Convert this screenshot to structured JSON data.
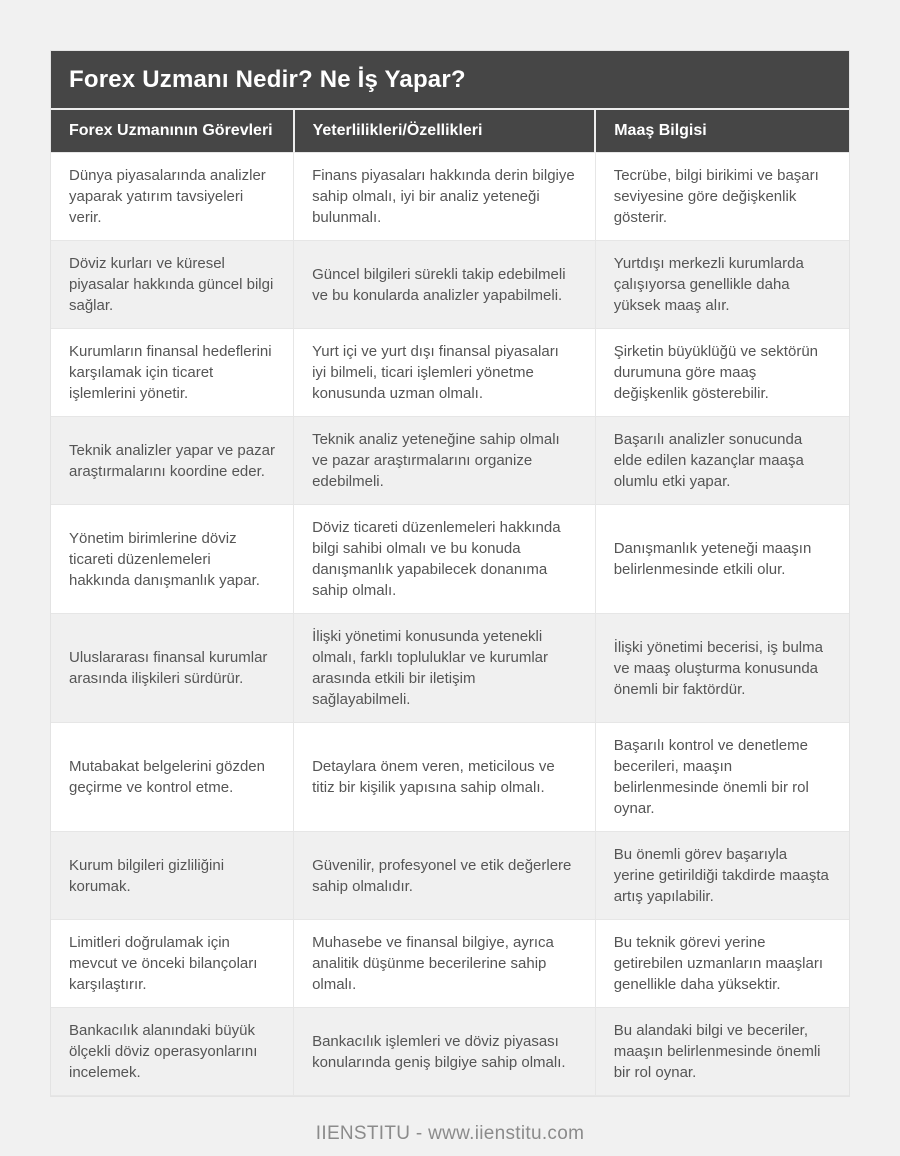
{
  "header": {
    "title": "Forex Uzmanı Nedir? Ne İş Yapar?"
  },
  "table": {
    "columns": [
      "Forex Uzmanının Görevleri",
      "Yeterlilikleri/Özellikleri",
      "Maaş Bilgisi"
    ],
    "rows": [
      [
        "Dünya piyasalarında analizler yaparak yatırım tavsiyeleri verir.",
        "Finans piyasaları hakkında derin bilgiye sahip olmalı, iyi bir analiz yeteneği bulunmalı.",
        "Tecrübe, bilgi birikimi ve başarı seviyesine göre değişkenlik gösterir."
      ],
      [
        "Döviz kurları ve küresel piyasalar hakkında güncel bilgi sağlar.",
        "Güncel bilgileri sürekli takip edebilmeli ve bu konularda analizler yapabilmeli.",
        "Yurtdışı merkezli kurumlarda çalışıyorsa genellikle daha yüksek maaş alır."
      ],
      [
        "Kurumların finansal hedeflerini karşılamak için ticaret işlemlerini yönetir.",
        "Yurt içi ve yurt dışı finansal piyasaları iyi bilmeli, ticari işlemleri yönetme konusunda uzman olmalı.",
        "Şirketin büyüklüğü ve sektörün durumuna göre maaş değişkenlik gösterebilir."
      ],
      [
        "Teknik analizler yapar ve pazar araştırmalarını koordine eder.",
        "Teknik analiz yeteneğine sahip olmalı ve pazar araştırmalarını organize edebilmeli.",
        "Başarılı analizler sonucunda elde edilen kazançlar maaşa olumlu etki yapar."
      ],
      [
        "Yönetim birimlerine döviz ticareti düzenlemeleri hakkında danışmanlık yapar.",
        "Döviz ticareti düzenlemeleri hakkında bilgi sahibi olmalı ve bu konuda danışmanlık yapabilecek donanıma sahip olmalı.",
        "Danışmanlık yeteneği maaşın belirlenmesinde etkili olur."
      ],
      [
        "Uluslararası finansal kurumlar arasında ilişkileri sürdürür.",
        "İlişki yönetimi konusunda yetenekli olmalı, farklı topluluklar ve kurumlar arasında etkili bir iletişim sağlayabilmeli.",
        "İlişki yönetimi becerisi, iş bulma ve maaş oluşturma konusunda önemli bir faktördür."
      ],
      [
        "Mutabakat belgelerini gözden geçirme ve kontrol etme.",
        "Detaylara önem veren, meticilous ve titiz bir kişilik yapısına sahip olmalı.",
        "Başarılı kontrol ve denetleme becerileri, maaşın belirlenmesinde önemli bir rol oynar."
      ],
      [
        "Kurum bilgileri gizliliğini korumak.",
        "Güvenilir, profesyonel ve etik değerlere sahip olmalıdır.",
        "Bu önemli görev başarıyla yerine getirildiği takdirde maaşta artış yapılabilir."
      ],
      [
        "Limitleri doğrulamak için mevcut ve önceki bilançoları karşılaştırır.",
        "Muhasebe ve finansal bilgiye, ayrıca analitik düşünme becerilerine sahip olmalı.",
        "Bu teknik görevi yerine getirebilen uzmanların maaşları genellikle daha yüksektir."
      ],
      [
        "Bankacılık alanındaki büyük ölçekli döviz operasyonlarını incelemek.",
        "Bankacılık işlemleri ve döviz piyasası konularında geniş bilgiye sahip olmalı.",
        "Bu alandaki bilgi ve beceriler, maaşın belirlenmesinde önemli bir rol oynar."
      ]
    ]
  },
  "footer": {
    "text": "IIENSTITU - www.iienstitu.com"
  },
  "colors": {
    "header_bg": "#464646",
    "header_text": "#ffffff",
    "page_bg": "#f1f1f1",
    "row_alt_bg": "#f0f0f0",
    "body_text": "#555555",
    "border": "#e6e6e6",
    "footer_text": "#8b8b8b"
  }
}
